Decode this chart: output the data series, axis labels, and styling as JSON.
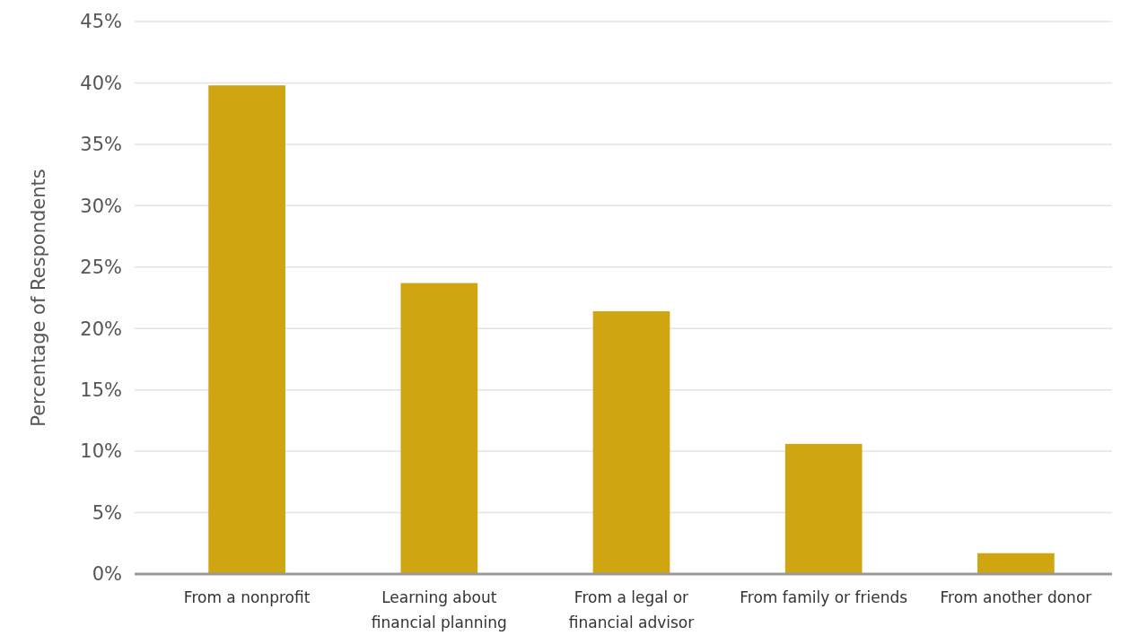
{
  "chart_data": {
    "type": "bar",
    "ylabel": "Percentage of Respondents",
    "categories": [
      "From a nonprofit",
      "Learning about financial planning",
      "From a legal or financial advisor",
      "From family or friends",
      "From another donor"
    ],
    "values": [
      39.8,
      23.7,
      21.4,
      10.6,
      1.7
    ],
    "color": "#cfa512",
    "ylim": [
      0,
      45
    ],
    "yticks": [
      {
        "value": 0,
        "label": "0%"
      },
      {
        "value": 5,
        "label": "5%"
      },
      {
        "value": 10,
        "label": "10%"
      },
      {
        "value": 15,
        "label": "15%"
      },
      {
        "value": 20,
        "label": "20%"
      },
      {
        "value": 25,
        "label": "25%"
      },
      {
        "value": 30,
        "label": "30%"
      },
      {
        "value": 35,
        "label": "35%"
      },
      {
        "value": 40,
        "label": "40%"
      },
      {
        "value": 45,
        "label": "45%"
      }
    ],
    "grid": "y"
  }
}
